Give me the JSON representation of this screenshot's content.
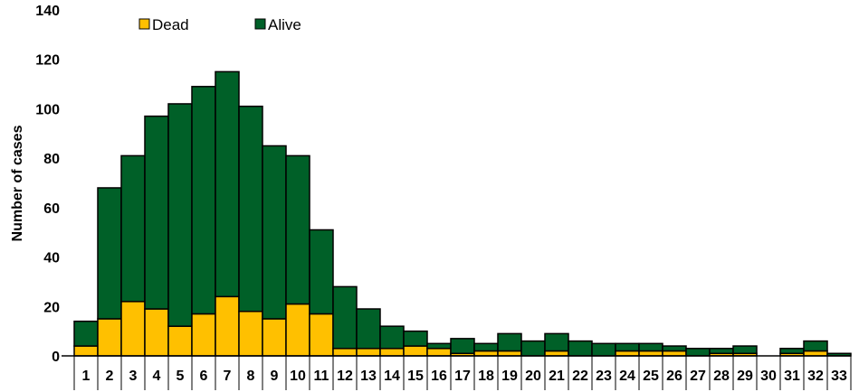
{
  "chart_data": {
    "type": "bar",
    "stacked": true,
    "title": "",
    "xlabel": "",
    "ylabel": "Number of cases",
    "ylim": [
      0,
      140
    ],
    "yticks": [
      0,
      20,
      40,
      60,
      80,
      100,
      120,
      140
    ],
    "grid": false,
    "legend_position": "top-left",
    "categories": [
      "1",
      "2",
      "3",
      "4",
      "5",
      "6",
      "7",
      "8",
      "9",
      "10",
      "11",
      "12",
      "13",
      "14",
      "15",
      "16",
      "17",
      "18",
      "19",
      "20",
      "21",
      "22",
      "23",
      "24",
      "25",
      "26",
      "27",
      "28",
      "29",
      "30",
      "31",
      "32",
      "33"
    ],
    "series": [
      {
        "name": "Dead",
        "color": "#FFC000",
        "values": [
          4,
          15,
          22,
          19,
          12,
          17,
          24,
          18,
          15,
          21,
          17,
          3,
          3,
          3,
          4,
          3,
          1,
          2,
          2,
          0,
          2,
          0,
          0,
          2,
          2,
          2,
          0,
          1,
          1,
          0,
          1,
          2,
          0
        ]
      },
      {
        "name": "Alive",
        "color": "#006028",
        "values": [
          10,
          53,
          59,
          78,
          90,
          92,
          91,
          83,
          70,
          60,
          34,
          25,
          16,
          9,
          6,
          2,
          6,
          3,
          7,
          6,
          7,
          6,
          5,
          3,
          3,
          2,
          3,
          2,
          3,
          0,
          2,
          4,
          1
        ]
      }
    ]
  }
}
